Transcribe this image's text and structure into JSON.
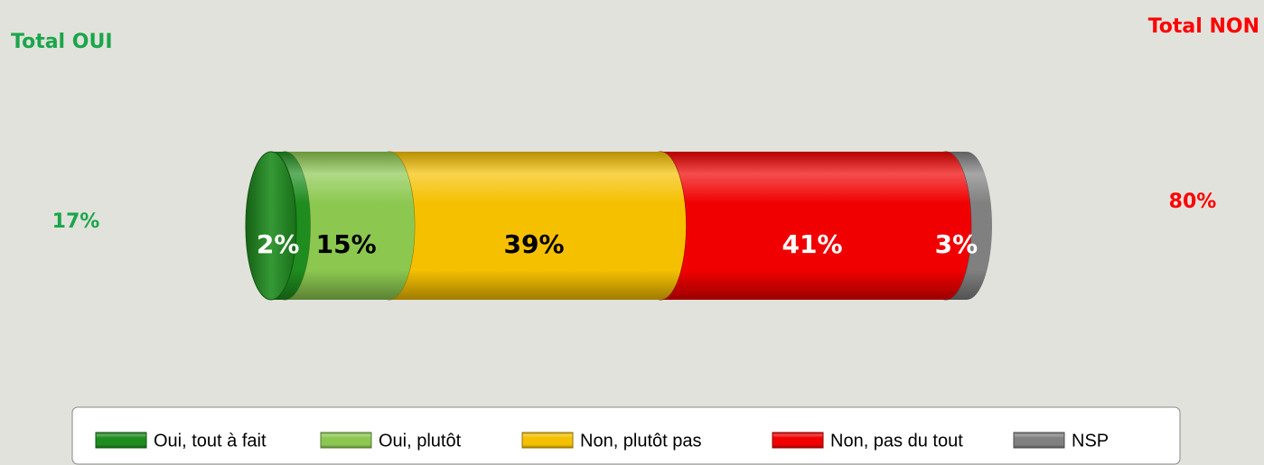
{
  "chart_data": {
    "type": "bar",
    "orientation": "horizontal",
    "stacked": true,
    "annotations": [
      {
        "text": "Total OUI",
        "value_label": "17%",
        "color": "#1aa64a",
        "side": "left"
      },
      {
        "text": "Total NON",
        "value_label": "80%",
        "color": "#ff0000",
        "side": "right"
      }
    ],
    "series": [
      {
        "name": "Oui, tout à fait",
        "color": "#1e8c1e",
        "label_color": "#ffffff",
        "values": [
          2
        ],
        "value_labels": [
          "2%"
        ]
      },
      {
        "name": "Oui, plutôt",
        "color": "#8cc850",
        "label_color": "#000000",
        "values": [
          15
        ],
        "value_labels": [
          "15%"
        ]
      },
      {
        "name": "Non, plutôt pas",
        "color": "#f5c000",
        "label_color": "#000000",
        "values": [
          39
        ],
        "value_labels": [
          "39%"
        ]
      },
      {
        "name": "Non, pas du tout",
        "color": "#f00000",
        "label_color": "#ffffff",
        "values": [
          41
        ],
        "value_labels": [
          "41%"
        ]
      },
      {
        "name": "NSP",
        "color": "#808080",
        "label_color": "#ffffff",
        "values": [
          3
        ],
        "value_labels": [
          "3%"
        ]
      }
    ],
    "legend": "bottom"
  }
}
